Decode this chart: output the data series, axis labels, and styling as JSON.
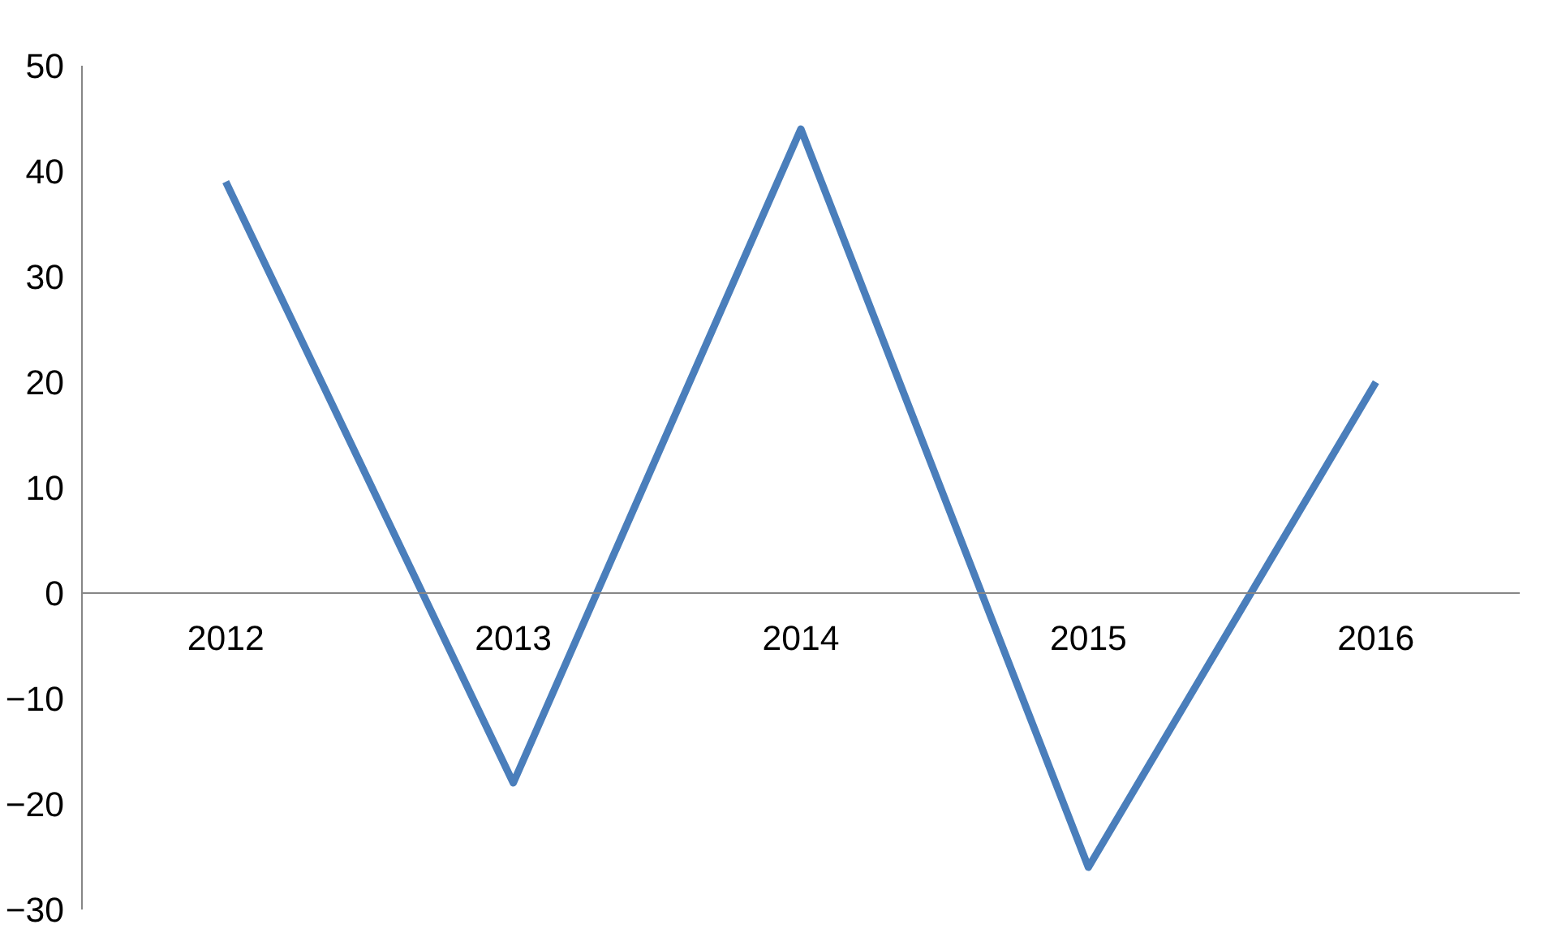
{
  "chart_data": {
    "type": "line",
    "categories": [
      "2012",
      "2013",
      "2014",
      "2015",
      "2016"
    ],
    "series": [
      {
        "color": "#4a7ebb",
        "values": [
          39,
          -18,
          44,
          -26,
          20
        ]
      }
    ],
    "ylim": [
      -30,
      50
    ],
    "yticks": [
      -30,
      -20,
      -10,
      0,
      10,
      20,
      30,
      40,
      50
    ],
    "grid": false,
    "marker": "none",
    "line_style": "solid"
  }
}
